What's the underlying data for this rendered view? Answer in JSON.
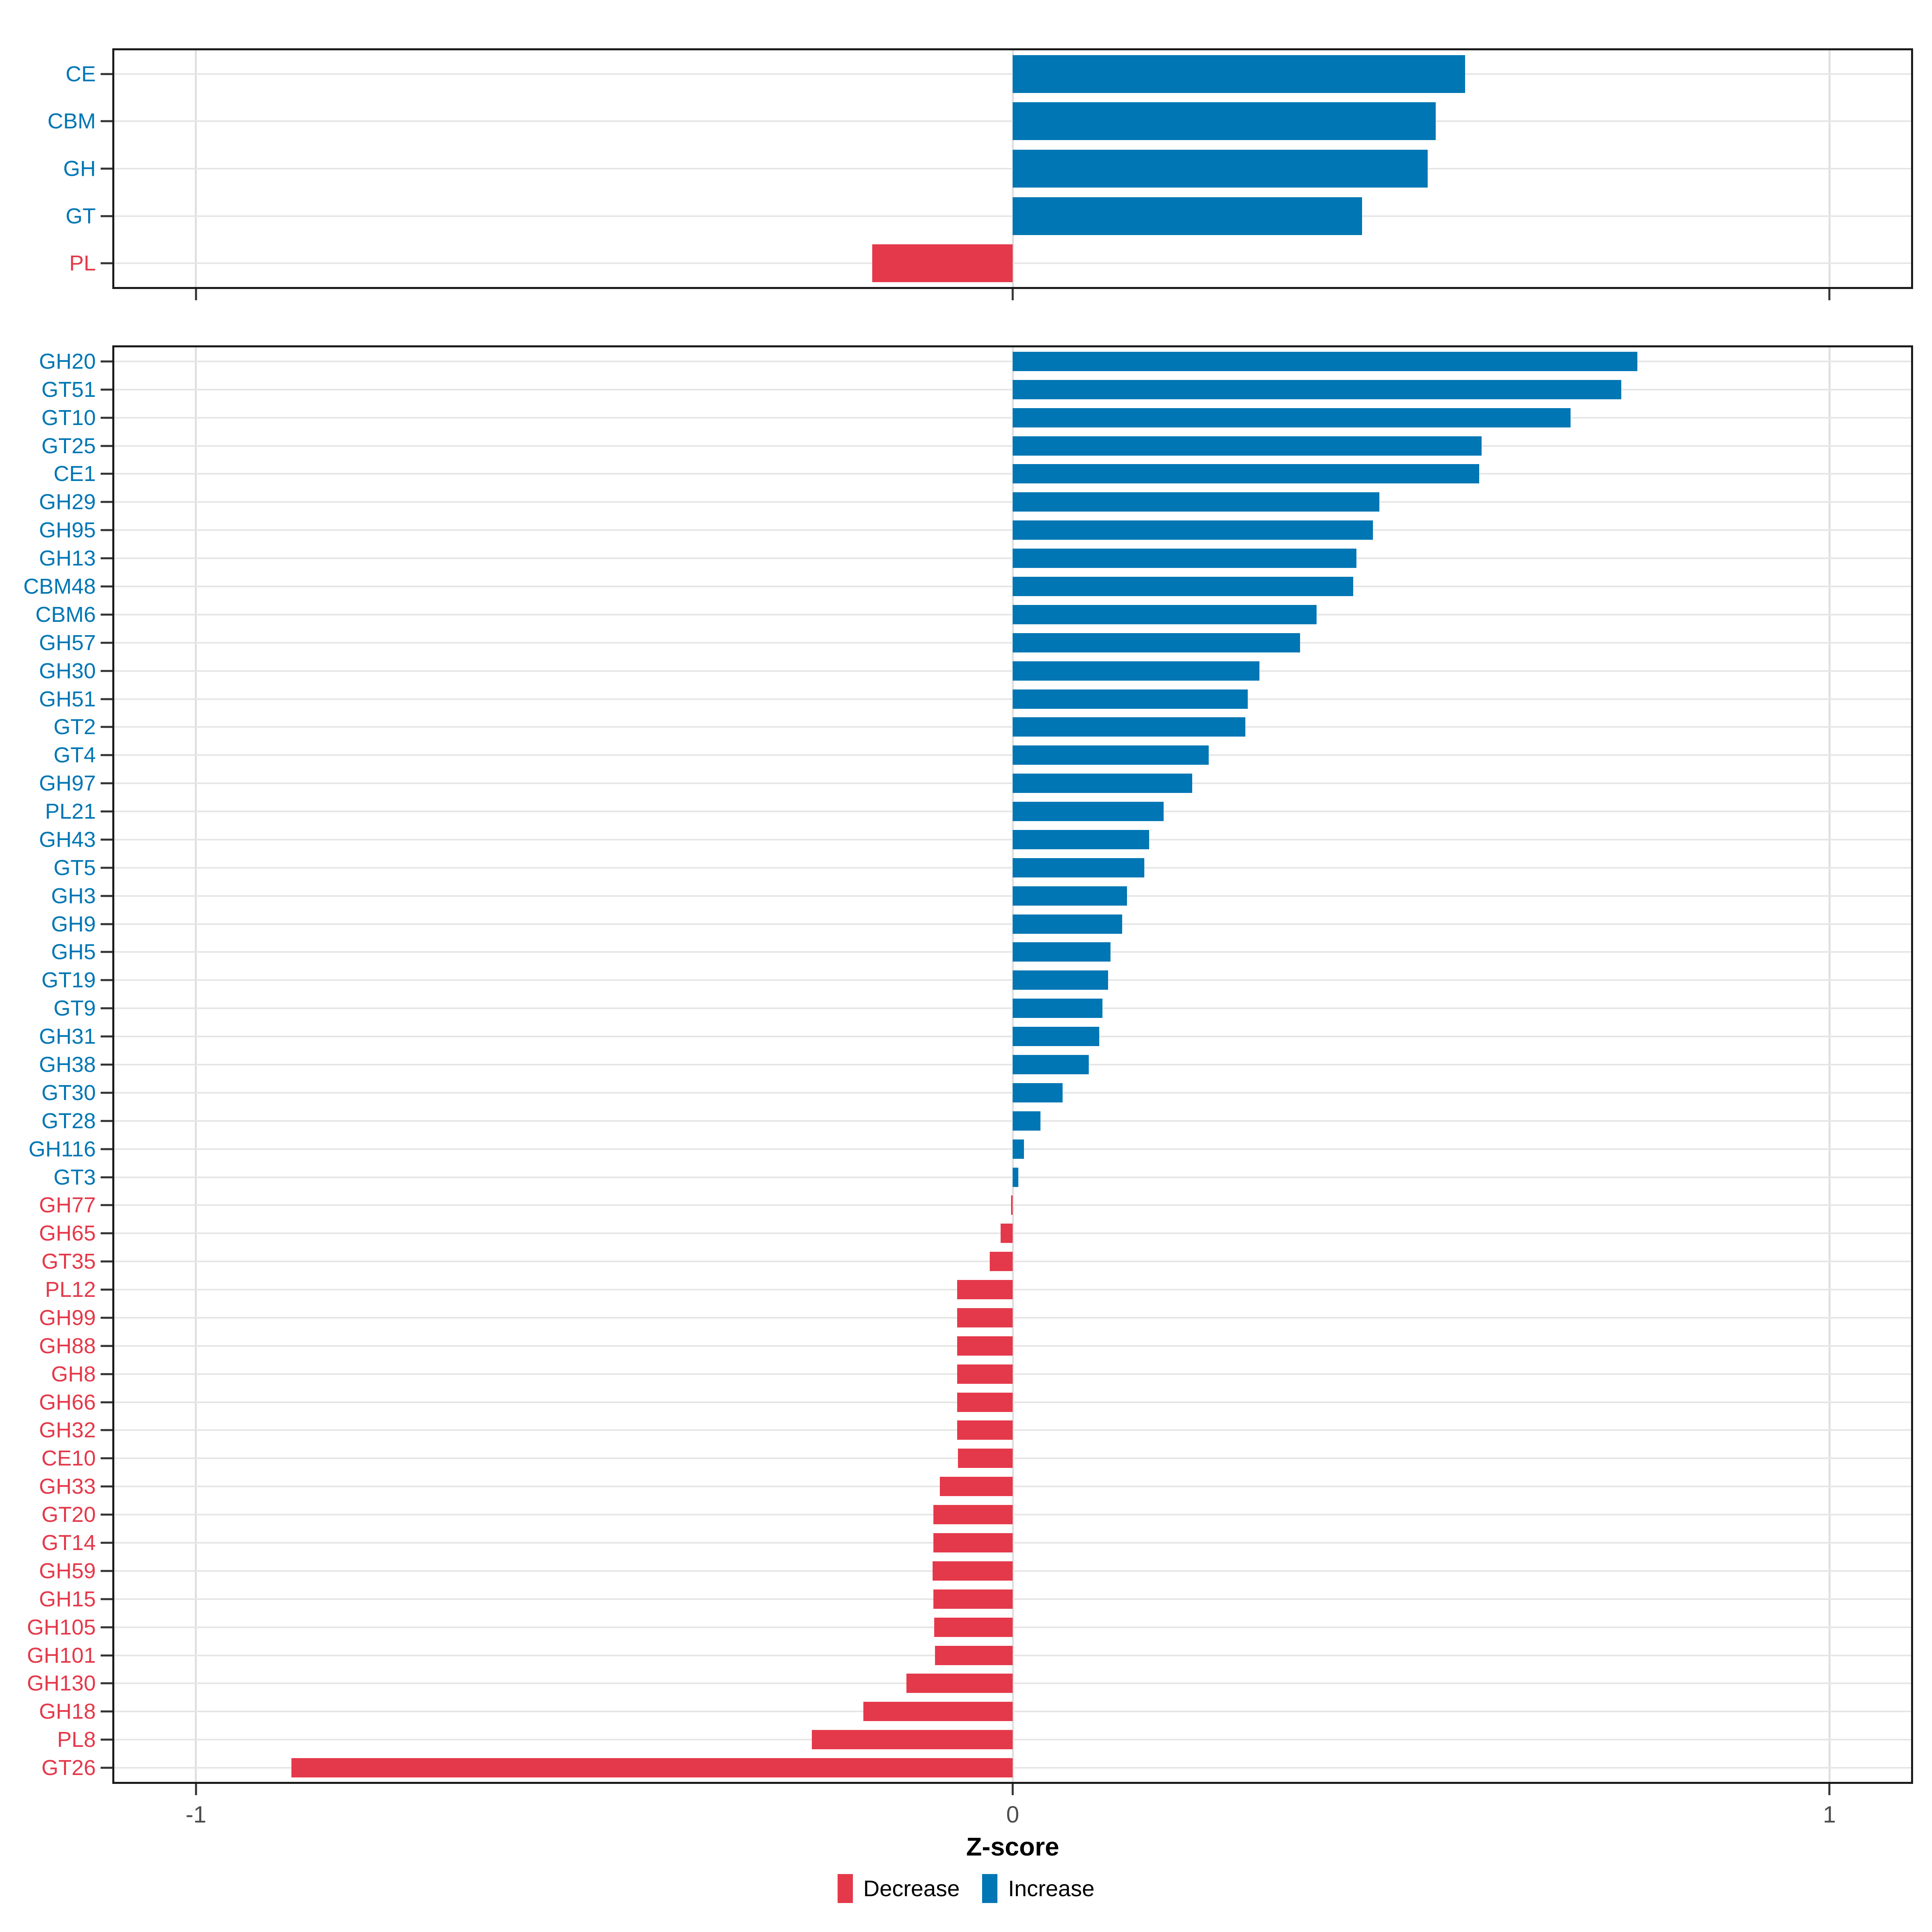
{
  "colors": {
    "increase": "#0076B4",
    "decrease": "#E4394A",
    "grid_h": "#E6E6E6",
    "grid_v": "#E0E0E0",
    "panel_border": "#1A1A1A",
    "tick_mark": "#333333",
    "tick_text": "#4D4D4D"
  },
  "x_axis": {
    "label": "Z-score",
    "min": -1.1,
    "max": 1.1,
    "ticks": [
      {
        "value": -1,
        "label": "-1"
      },
      {
        "value": 0,
        "label": "0"
      },
      {
        "value": 1,
        "label": "1"
      }
    ]
  },
  "legend": {
    "items": [
      {
        "label": "Decrease",
        "direction": "decrease"
      },
      {
        "label": "Increase",
        "direction": "increase"
      }
    ]
  },
  "chart_data": [
    {
      "type": "bar",
      "orientation": "horizontal",
      "panel": "cazyme-classes",
      "xlabel": "Z-score",
      "xlim": [
        -1.1,
        1.1
      ],
      "grid": "major",
      "categories": [
        "CE",
        "CBM",
        "GH",
        "GT",
        "PL"
      ],
      "values": [
        0.554,
        0.518,
        0.508,
        0.428,
        -0.172
      ]
    },
    {
      "type": "bar",
      "orientation": "horizontal",
      "panel": "cazyme-families",
      "xlabel": "Z-score",
      "xlim": [
        -1.1,
        1.1
      ],
      "grid": "major",
      "categories": [
        "GH20",
        "GT51",
        "GT10",
        "GT25",
        "CE1",
        "GH29",
        "GH95",
        "GH13",
        "CBM48",
        "CBM6",
        "GH57",
        "GH30",
        "GH51",
        "GT2",
        "GT4",
        "GH97",
        "PL21",
        "GH43",
        "GT5",
        "GH3",
        "GH9",
        "GH5",
        "GT19",
        "GT9",
        "GH31",
        "GH38",
        "GT30",
        "GT28",
        "GH116",
        "GT3",
        "GH77",
        "GH65",
        "GT35",
        "PL12",
        "GH99",
        "GH88",
        "GH8",
        "GH66",
        "GH32",
        "CE10",
        "GH33",
        "GT20",
        "GT14",
        "GH59",
        "GH15",
        "GH105",
        "GH101",
        "GH130",
        "GH18",
        "PL8",
        "GT26"
      ],
      "values": [
        0.765,
        0.745,
        0.683,
        0.574,
        0.571,
        0.449,
        0.441,
        0.421,
        0.417,
        0.372,
        0.352,
        0.302,
        0.288,
        0.285,
        0.24,
        0.22,
        0.185,
        0.167,
        0.161,
        0.14,
        0.134,
        0.12,
        0.117,
        0.11,
        0.106,
        0.093,
        0.061,
        0.034,
        0.014,
        0.007,
        -0.002,
        -0.015,
        -0.028,
        -0.068,
        -0.068,
        -0.068,
        -0.068,
        -0.068,
        -0.068,
        -0.067,
        -0.089,
        -0.097,
        -0.097,
        -0.098,
        -0.097,
        -0.096,
        -0.095,
        -0.13,
        -0.183,
        -0.246,
        -0.883
      ]
    }
  ]
}
